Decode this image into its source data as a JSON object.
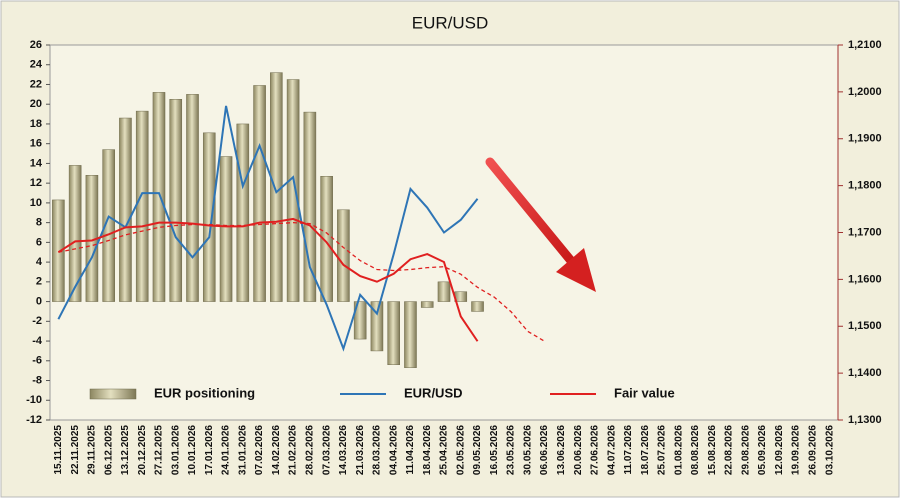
{
  "chart_data": {
    "type": "combo",
    "title": "EUR/USD",
    "categories": [
      "15.11.2025",
      "22.11.2025",
      "29.11.2025",
      "06.12.2025",
      "13.12.2025",
      "20.12.2025",
      "27.12.2025",
      "03.01.2026",
      "10.01.2026",
      "17.01.2026",
      "24.01.2026",
      "31.01.2026",
      "07.02.2026",
      "14.02.2026",
      "21.02.2026",
      "28.02.2026",
      "07.03.2026",
      "14.03.2026",
      "21.03.2026",
      "28.03.2026",
      "04.04.2026",
      "11.04.2026",
      "18.04.2026",
      "25.04.2026",
      "02.05.2026",
      "09.05.2026",
      "16.05.2026",
      "23.05.2026",
      "30.05.2026",
      "06.06.2026",
      "13.06.2026",
      "20.06.2026",
      "27.06.2026",
      "04.07.2026",
      "11.07.2026",
      "18.07.2026",
      "25.07.2026",
      "01.08.2026",
      "08.08.2026",
      "15.08.2026",
      "22.08.2026",
      "29.08.2026",
      "05.09.2026",
      "12.09.2026",
      "19.09.2026",
      "26.09.2026",
      "03.10.2026"
    ],
    "series": [
      {
        "name": "EUR positioning",
        "type": "bar",
        "color": "#c9c39a",
        "values": [
          10.3,
          13.8,
          12.8,
          15.4,
          18.6,
          19.3,
          21.2,
          20.5,
          21.0,
          17.1,
          14.7,
          18.0,
          21.9,
          23.2,
          22.5,
          19.2,
          12.7,
          9.3,
          -3.8,
          -5.0,
          -6.4,
          -6.7,
          -0.6,
          2.0,
          1.0,
          -1.0,
          null,
          null,
          null,
          null,
          null,
          null,
          null,
          null,
          null,
          null,
          null,
          null,
          null,
          null,
          null,
          null,
          null,
          null,
          null,
          null,
          null
        ]
      },
      {
        "name": "EUR/USD",
        "type": "line",
        "axis": "y2",
        "color": "#2e75b6",
        "values": [
          1.1515,
          1.1584,
          1.1647,
          1.1734,
          1.1711,
          1.1784,
          1.1784,
          1.169,
          1.1647,
          1.169,
          1.197,
          1.1799,
          1.1885,
          1.1786,
          1.1818,
          1.1626,
          1.1546,
          1.1452,
          1.1567,
          1.1527,
          1.1654,
          1.1793,
          1.1753,
          1.17,
          1.1727,
          1.1772,
          null,
          null,
          null,
          null,
          null,
          null,
          null,
          null,
          null,
          null,
          null,
          null,
          null,
          null,
          null,
          null,
          null,
          null,
          null,
          null,
          null
        ]
      },
      {
        "name": "Fair value",
        "type": "line",
        "axis": "y2",
        "color": "#e02020",
        "values": [
          1.1658,
          1.1681,
          1.1683,
          1.1696,
          1.1711,
          1.1713,
          1.1721,
          1.1721,
          1.1719,
          1.1715,
          1.1713,
          1.1713,
          1.1721,
          1.1723,
          1.1729,
          1.1715,
          1.1679,
          1.1631,
          1.1607,
          1.1595,
          1.1612,
          1.1643,
          1.1654,
          1.1637,
          1.1521,
          1.1468,
          null,
          null,
          null,
          null,
          null,
          null,
          null,
          null,
          null,
          null,
          null,
          null,
          null,
          null,
          null,
          null,
          null,
          null,
          null,
          null,
          null
        ]
      },
      {
        "type": "line",
        "axis": "y2",
        "color": "#e02020",
        "dashed": true,
        "values": [
          1.1658,
          1.1665,
          1.1672,
          1.1683,
          1.1695,
          1.1703,
          1.1711,
          1.1715,
          1.1717,
          1.1717,
          1.1715,
          1.1715,
          1.1717,
          1.1719,
          1.1721,
          1.1719,
          1.1699,
          1.1668,
          1.164,
          1.1621,
          1.1619,
          1.1621,
          1.1625,
          1.1627,
          1.1611,
          1.1583,
          1.1562,
          1.1531,
          1.1489,
          1.1468,
          null,
          null,
          null,
          null,
          null,
          null,
          null,
          null,
          null,
          null,
          null,
          null,
          null,
          null,
          null,
          null,
          null
        ]
      }
    ],
    "ylim": [
      -12,
      26
    ],
    "yticks": [
      -12,
      -10,
      -8,
      -6,
      -4,
      -2,
      0,
      2,
      4,
      6,
      8,
      10,
      12,
      14,
      16,
      18,
      20,
      22,
      24,
      26
    ],
    "y2lim": [
      1.13,
      1.21
    ],
    "y2ticks": [
      {
        "value": 1.13,
        "label": "1,1300"
      },
      {
        "value": 1.14,
        "label": "1,1400"
      },
      {
        "value": 1.15,
        "label": "1,1500"
      },
      {
        "value": 1.16,
        "label": "1,1600"
      },
      {
        "value": 1.17,
        "label": "1,1700"
      },
      {
        "value": 1.18,
        "label": "1,1800"
      },
      {
        "value": 1.19,
        "label": "1,1900"
      },
      {
        "value": 1.2,
        "label": "1,2000"
      },
      {
        "value": 1.21,
        "label": "1,2100"
      }
    ],
    "legend": "bottom",
    "grid": false
  }
}
